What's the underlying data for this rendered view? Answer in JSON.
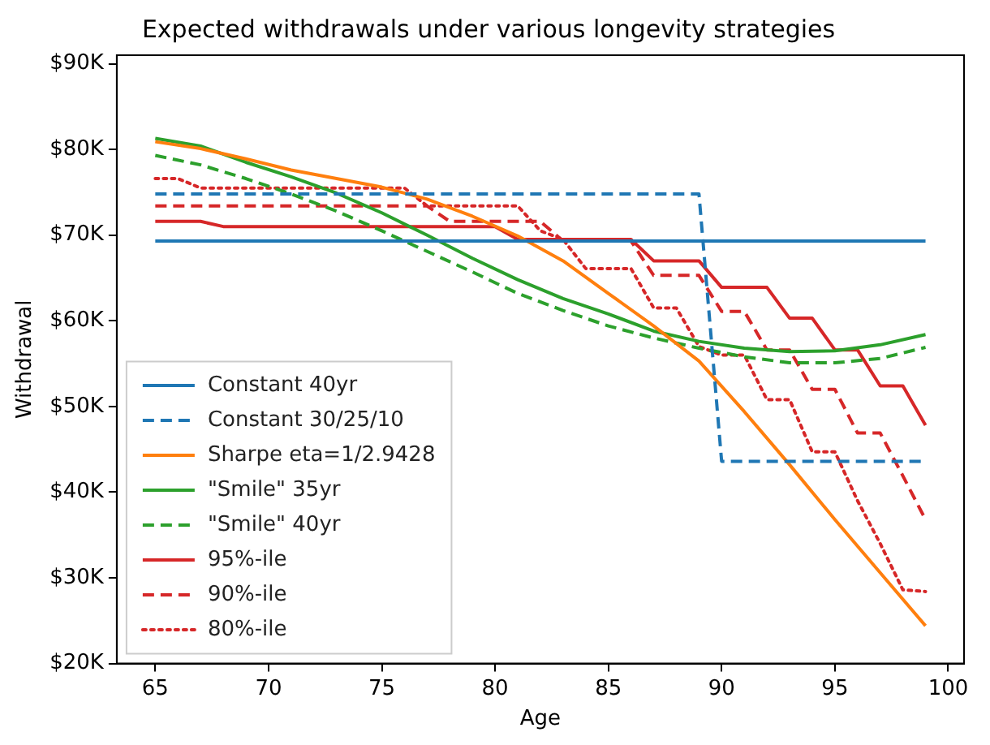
{
  "chart_data": {
    "type": "line",
    "title": "Expected withdrawals under various longevity strategies",
    "xlabel": "Age",
    "ylabel": "Withdrawal",
    "xlim": [
      63.3,
      100.7
    ],
    "xticks": [
      65,
      70,
      75,
      80,
      85,
      90,
      95,
      100
    ],
    "ylim": [
      20000,
      91000
    ],
    "yticks": [
      {
        "value": 20000,
        "label": "$20K"
      },
      {
        "value": 30000,
        "label": "$30K"
      },
      {
        "value": 40000,
        "label": "$40K"
      },
      {
        "value": 50000,
        "label": "$50K"
      },
      {
        "value": 60000,
        "label": "$60K"
      },
      {
        "value": 70000,
        "label": "$70K"
      },
      {
        "value": 80000,
        "label": "$80K"
      },
      {
        "value": 90000,
        "label": "$90K"
      }
    ],
    "grid": false,
    "legend": "bottom left",
    "marker": "none",
    "series": [
      {
        "name": "Constant 40yr",
        "color": "#1f77b4",
        "line_style": "solid",
        "x": [
          65,
          99
        ],
        "values": [
          69300,
          69300
        ]
      },
      {
        "name": "Constant 30/25/10",
        "color": "#1f77b4",
        "line_style": "dashed",
        "x": [
          65,
          89,
          90,
          99
        ],
        "values": [
          74800,
          74800,
          43600,
          43600
        ]
      },
      {
        "name": "Sharpe eta=1/2.9428",
        "color": "#ff7f0e",
        "line_style": "solid",
        "x": [
          65,
          67,
          69,
          71,
          73,
          75,
          77,
          79,
          81,
          83,
          85,
          87,
          89,
          91,
          93,
          95,
          97,
          99
        ],
        "values": [
          80900,
          80100,
          78900,
          77600,
          76600,
          75600,
          74200,
          72200,
          69900,
          67000,
          63200,
          59400,
          55300,
          49400,
          43200,
          36800,
          30600,
          24400
        ]
      },
      {
        "name": "\"Smile\" 35yr",
        "color": "#2ca02c",
        "line_style": "solid",
        "x": [
          65,
          67,
          69,
          71,
          73,
          75,
          77,
          79,
          81,
          83,
          85,
          87,
          89,
          91,
          93,
          95,
          97,
          99
        ],
        "values": [
          81300,
          80400,
          78500,
          76800,
          74900,
          72600,
          70000,
          67300,
          64800,
          62600,
          60800,
          58800,
          57600,
          56800,
          56400,
          56500,
          57200,
          58400
        ]
      },
      {
        "name": "\"Smile\" 40yr",
        "color": "#2ca02c",
        "line_style": "dashed",
        "x": [
          65,
          67,
          69,
          71,
          73,
          75,
          77,
          79,
          81,
          83,
          85,
          87,
          89,
          91,
          93,
          95,
          97,
          99
        ],
        "values": [
          79300,
          78200,
          76600,
          74800,
          72800,
          70500,
          68100,
          65700,
          63200,
          61200,
          59400,
          58000,
          56800,
          55800,
          55100,
          55100,
          55600,
          56900
        ]
      },
      {
        "name": "95%-ile",
        "color": "#d62728",
        "line_style": "solid",
        "x": [
          65,
          67,
          68,
          80,
          81,
          86,
          87,
          89,
          90,
          92,
          93,
          94,
          95,
          96,
          97,
          98,
          99
        ],
        "values": [
          71600,
          71600,
          71000,
          71000,
          69500,
          69500,
          67000,
          67000,
          63900,
          63900,
          60300,
          60300,
          56600,
          56600,
          52400,
          52400,
          47800
        ]
      },
      {
        "name": "90%-ile",
        "color": "#d62728",
        "line_style": "dashed",
        "x": [
          65,
          77,
          78,
          82,
          83,
          86,
          87,
          89,
          90,
          91,
          92,
          93,
          94,
          95,
          96,
          97,
          98,
          99
        ],
        "values": [
          73400,
          73400,
          71600,
          71600,
          69300,
          69300,
          65300,
          65300,
          61100,
          61100,
          56600,
          56600,
          52000,
          52000,
          46900,
          46900,
          41900,
          36800
        ]
      },
      {
        "name": "80%-ile",
        "color": "#d62728",
        "line_style": "dotted",
        "x": [
          65,
          66,
          67,
          76,
          77,
          81,
          82,
          83,
          84,
          86,
          87,
          88,
          89,
          90,
          91,
          92,
          93,
          94,
          95,
          96,
          97,
          98,
          99
        ],
        "values": [
          76600,
          76600,
          75500,
          75500,
          73400,
          73400,
          70500,
          69500,
          66100,
          66100,
          61500,
          61500,
          57000,
          56000,
          56000,
          50800,
          50800,
          44700,
          44700,
          39000,
          34000,
          28600,
          28400
        ]
      }
    ]
  }
}
